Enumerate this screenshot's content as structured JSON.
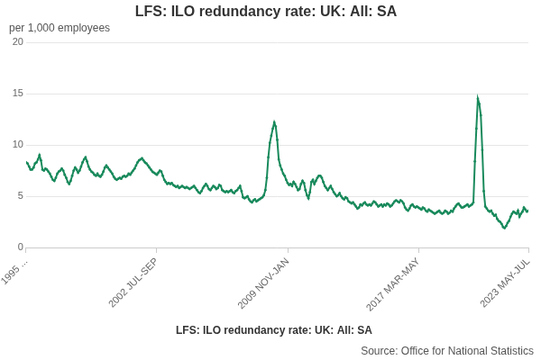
{
  "chart_data": {
    "type": "line",
    "title": "LFS: ILO redundancy rate: UK: All: SA",
    "ylabel": "per 1,000 employees",
    "source": "Source: Office for National Statistics",
    "categories": [
      "1995 ...",
      null,
      null,
      null,
      null,
      null,
      null,
      null,
      null,
      null,
      null,
      null,
      null,
      null,
      null,
      null,
      null,
      null,
      null,
      null,
      null,
      null,
      null,
      null,
      null,
      null,
      null,
      null,
      null,
      null,
      null,
      null,
      null,
      null,
      null,
      null,
      null,
      null,
      null,
      null,
      null,
      null,
      null,
      null,
      null,
      null,
      null,
      null,
      null,
      null,
      null,
      null,
      null,
      null,
      null,
      null,
      null,
      null,
      null,
      null,
      null,
      null,
      null,
      null,
      null,
      null,
      null,
      null,
      null,
      null,
      null,
      null,
      null,
      null,
      null,
      null,
      null,
      null,
      null,
      null,
      null,
      null,
      null,
      null,
      null,
      null,
      null,
      null,
      "2002 JUL-SEP",
      null,
      null,
      null,
      null,
      null,
      null,
      null,
      null,
      null,
      null,
      null,
      null,
      null,
      null,
      null,
      null,
      null,
      null,
      null,
      null,
      null,
      null,
      null,
      null,
      null,
      null,
      null,
      null,
      null,
      null,
      null,
      null,
      null,
      null,
      null,
      null,
      null,
      null,
      null,
      null,
      null,
      null,
      null,
      null,
      null,
      null,
      null,
      null,
      null,
      null,
      null,
      null,
      null,
      null,
      null,
      null,
      null,
      null,
      null,
      null,
      null,
      null,
      null,
      null,
      null,
      null,
      null,
      null,
      null,
      null,
      null,
      null,
      null,
      null,
      null,
      null,
      null,
      null,
      null,
      null,
      null,
      null,
      null,
      null,
      null,
      null,
      null,
      "2009 NOV-JAN",
      null,
      null,
      null,
      null,
      null,
      null,
      null,
      null,
      null,
      null,
      null,
      null,
      null,
      null,
      null,
      null,
      null,
      null,
      null,
      null,
      null,
      null,
      null,
      null,
      null,
      null,
      null,
      null,
      null,
      null,
      null,
      null,
      null,
      null,
      null,
      null,
      null,
      null,
      null,
      null,
      null,
      null,
      null,
      null,
      null,
      null,
      null,
      null,
      null,
      null,
      null,
      null,
      null,
      null,
      null,
      null,
      null,
      null,
      null,
      null,
      null,
      null,
      null,
      null,
      null,
      null,
      null,
      null,
      null,
      null,
      null,
      null,
      null,
      null,
      null,
      null,
      null,
      null,
      null,
      null,
      null,
      null,
      null,
      null,
      null,
      null,
      null,
      "2017 MAR-MAY",
      null,
      null,
      null,
      null,
      null,
      null,
      null,
      null,
      null,
      null,
      null,
      null,
      null,
      null,
      null,
      null,
      null,
      null,
      null,
      null,
      null,
      null,
      null,
      null,
      null,
      null,
      null,
      null,
      null,
      null,
      null,
      null,
      null,
      null,
      null,
      null,
      null,
      null,
      null,
      null,
      null,
      null,
      null,
      null,
      null,
      null,
      null,
      null,
      null,
      null,
      null,
      null,
      null,
      null,
      null,
      null,
      null,
      null,
      null,
      null,
      null,
      null,
      null,
      null,
      null,
      null,
      null,
      null,
      null,
      null,
      null,
      null,
      null,
      "2023 MAY-JUL"
    ],
    "series": [
      {
        "name": "LFS: ILO redundancy rate: UK: All: SA",
        "color": "#198a5c",
        "marker": "circle",
        "values": [
          8.3,
          8.2,
          7.9,
          7.6,
          7.6,
          7.8,
          8.2,
          8.3,
          8.6,
          9.0,
          8.5,
          7.6,
          7.5,
          7.7,
          7.6,
          7.4,
          7.2,
          6.9,
          6.6,
          6.5,
          6.8,
          7.2,
          7.4,
          7.5,
          7.7,
          7.5,
          7.1,
          6.8,
          6.4,
          6.2,
          6.5,
          7.0,
          7.5,
          7.8,
          7.6,
          7.3,
          7.5,
          7.9,
          8.3,
          8.6,
          8.8,
          8.4,
          7.9,
          7.6,
          7.4,
          7.3,
          7.1,
          7.0,
          7.2,
          7.0,
          6.9,
          7.1,
          7.4,
          7.8,
          8.0,
          7.8,
          7.6,
          7.4,
          7.2,
          6.9,
          6.7,
          6.6,
          6.7,
          6.8,
          6.7,
          6.9,
          7.0,
          6.9,
          7.0,
          7.2,
          7.1,
          7.3,
          7.5,
          7.7,
          8.0,
          8.3,
          8.5,
          8.6,
          8.7,
          8.5,
          8.3,
          8.2,
          8.0,
          7.8,
          7.6,
          7.4,
          7.3,
          7.2,
          7.1,
          7.3,
          7.5,
          7.4,
          7.0,
          6.6,
          6.4,
          6.2,
          6.3,
          6.2,
          6.3,
          6.1,
          6.0,
          5.9,
          6.0,
          5.8,
          5.9,
          6.0,
          5.9,
          5.8,
          5.9,
          5.8,
          5.7,
          5.8,
          5.9,
          6.0,
          5.8,
          5.6,
          5.4,
          5.3,
          5.5,
          5.8,
          6.0,
          6.2,
          6.0,
          5.7,
          5.6,
          5.8,
          6.0,
          5.9,
          5.7,
          5.8,
          6.1,
          6.0,
          5.6,
          5.5,
          5.4,
          5.5,
          5.4,
          5.5,
          5.6,
          5.4,
          5.3,
          5.5,
          5.6,
          5.8,
          6.0,
          5.5,
          4.9,
          4.8,
          4.9,
          5.0,
          4.7,
          4.5,
          4.4,
          4.6,
          4.7,
          4.5,
          4.6,
          4.7,
          4.8,
          4.9,
          5.1,
          5.6,
          6.8,
          8.8,
          10.2,
          10.9,
          11.6,
          12.2,
          11.8,
          10.5,
          8.6,
          8.0,
          7.6,
          7.2,
          7.0,
          6.6,
          6.3,
          6.1,
          6.2,
          6.0,
          6.4,
          6.2,
          5.9,
          5.6,
          5.7,
          6.2,
          6.5,
          6.3,
          5.6,
          5.1,
          4.8,
          5.4,
          6.4,
          6.6,
          6.2,
          6.5,
          6.8,
          7.0,
          7.0,
          6.8,
          6.4,
          6.0,
          5.8,
          5.6,
          5.8,
          6.0,
          5.7,
          5.4,
          5.2,
          5.0,
          5.1,
          5.3,
          5.0,
          4.8,
          4.7,
          4.9,
          4.8,
          4.5,
          4.4,
          4.3,
          4.4,
          4.2,
          4.0,
          3.8,
          3.9,
          4.2,
          4.1,
          4.3,
          4.4,
          4.2,
          4.1,
          4.2,
          4.1,
          4.3,
          4.5,
          4.4,
          4.2,
          4.0,
          4.1,
          4.2,
          4.0,
          4.2,
          4.1,
          4.3,
          4.2,
          4.0,
          4.1,
          4.3,
          4.5,
          4.6,
          4.5,
          4.4,
          4.6,
          4.5,
          4.3,
          3.9,
          3.7,
          3.6,
          3.8,
          4.1,
          4.2,
          4.0,
          3.9,
          4.0,
          3.9,
          3.8,
          3.7,
          3.9,
          3.8,
          3.6,
          3.5,
          3.7,
          3.6,
          3.5,
          3.4,
          3.3,
          3.4,
          3.5,
          3.6,
          3.4,
          3.3,
          3.4,
          3.6,
          3.5,
          3.3,
          3.4,
          3.6,
          3.5,
          3.8,
          4.0,
          4.2,
          4.3,
          4.1,
          3.9,
          3.9,
          4.0,
          4.1,
          4.2,
          4.0,
          4.1,
          4.2,
          4.4,
          8.4,
          11.6,
          14.5,
          14.0,
          12.9,
          9.5,
          5.5,
          4.0,
          3.8,
          3.6,
          3.5,
          3.6,
          3.3,
          3.1,
          3.2,
          2.8,
          2.6,
          2.5,
          2.3,
          2.0,
          1.9,
          2.1,
          2.4,
          2.6,
          3.0,
          3.3,
          3.5,
          3.4,
          3.3,
          3.6,
          3.0,
          3.3,
          3.5,
          3.9,
          3.7,
          3.5,
          3.6
        ]
      }
    ],
    "ylim": [
      0,
      20
    ],
    "yticks": [
      0,
      5,
      10,
      15,
      20
    ],
    "grid": true,
    "legend": "bottom"
  }
}
